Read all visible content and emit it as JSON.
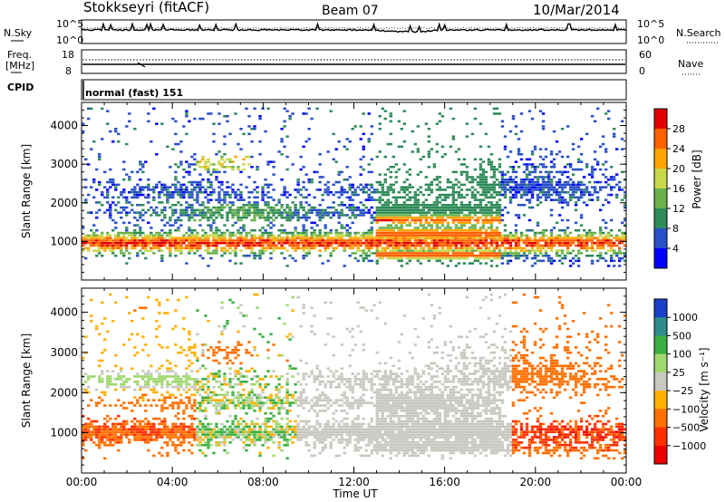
{
  "header": {
    "station": "Stokkseyri (fitACF)",
    "beam": "Beam 07",
    "date": "10/Mar/2014"
  },
  "panels": {
    "nsky_label": "N.Sky",
    "nsearch_label": "N.Search",
    "noise_ticks": [
      "10^5",
      "10^0"
    ],
    "freq_label": "Freq.",
    "freq_unit": "[MHz]",
    "freq_ticks": [
      "18",
      "8"
    ],
    "nave_label": "Nave",
    "nave_ticks": [
      "60",
      "0"
    ],
    "cpid_label": "CPID",
    "cpid_value": "normal (fast) 151"
  },
  "chart_data": [
    {
      "type": "heatmap",
      "name": "power",
      "ylabel": "Slant Range [km]",
      "ylim": [
        0,
        4600
      ],
      "yticks": [
        1000,
        2000,
        3000,
        4000
      ],
      "xlim": [
        0,
        24
      ],
      "colorbar": {
        "label": "Power [dB]",
        "ticks": [
          "4",
          "8",
          "12",
          "16",
          "20",
          "24",
          "28"
        ],
        "colors": [
          "#0000ff",
          "#2850c8",
          "#2e8b57",
          "#6ab04c",
          "#c8d84a",
          "#ffa500",
          "#ff6000",
          "#e00000"
        ]
      }
    },
    {
      "type": "heatmap",
      "name": "velocity",
      "ylabel": "Slant Range [km]",
      "ylim": [
        0,
        4600
      ],
      "yticks": [
        1000,
        2000,
        3000,
        4000
      ],
      "xlim": [
        0,
        24
      ],
      "colorbar": {
        "label": "Velocity [m s⁻¹]",
        "ticks": [
          "1000",
          "500",
          "100",
          "25",
          "−25",
          "−100",
          "−500",
          "−1000"
        ],
        "colors": [
          "#1a3fc8",
          "#2e8b8b",
          "#3cb043",
          "#a0d870",
          "#c8c8c0",
          "#ffb000",
          "#ff7000",
          "#ff3000",
          "#ee0000"
        ]
      }
    }
  ],
  "xaxis": {
    "label": "Time UT",
    "ticks": [
      "00:00",
      "04:00",
      "08:00",
      "12:00",
      "16:00",
      "20:00",
      "00:00"
    ]
  }
}
